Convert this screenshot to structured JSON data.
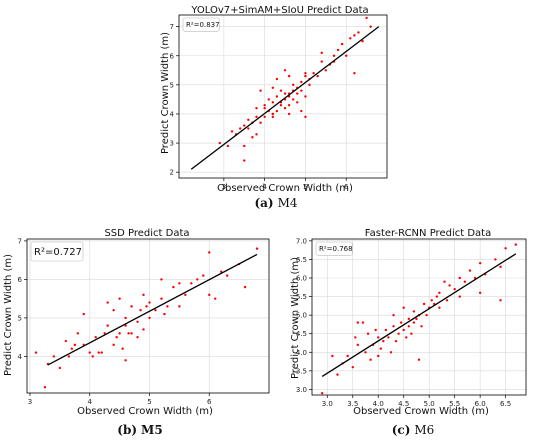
{
  "chart_data": [
    {
      "id": "M4",
      "type": "scatter",
      "title": "YOLOv7+SimAM+SIoU Predict Data",
      "xlabel": "Observed Crown Width   (m)",
      "ylabel": "Predict Crown Width   (m)",
      "r2_label": "R²=0.837",
      "caption_letter": "(a)",
      "caption_name": "M4",
      "xlim": [
        1.9,
        7.0
      ],
      "ylim": [
        1.8,
        7.4
      ],
      "xticks": [
        3,
        4,
        5,
        6
      ],
      "yticks": [
        2,
        3,
        4,
        5,
        6,
        7
      ],
      "grid": true,
      "point_color": "#ff0000",
      "line_color": "#000000",
      "fit_line": {
        "x": [
          2.2,
          6.8
        ],
        "y": [
          2.1,
          7.0
        ]
      },
      "points": {
        "x": [
          2.9,
          3.1,
          3.2,
          3.3,
          3.4,
          3.5,
          3.5,
          3.6,
          3.6,
          3.7,
          3.7,
          3.8,
          3.8,
          3.9,
          3.9,
          4.0,
          4.0,
          4.0,
          4.1,
          4.1,
          4.2,
          4.2,
          4.2,
          4.3,
          4.3,
          4.3,
          4.4,
          4.4,
          4.4,
          4.5,
          4.5,
          4.5,
          4.5,
          4.6,
          4.6,
          4.6,
          4.7,
          4.7,
          4.7,
          4.8,
          4.8,
          4.8,
          4.9,
          4.9,
          5.0,
          5.0,
          5.0,
          5.0,
          5.1,
          5.1,
          5.2,
          5.3,
          5.4,
          5.5,
          5.6,
          5.7,
          5.8,
          5.9,
          6.0,
          6.1,
          6.2,
          6.3,
          6.4,
          6.5,
          6.6,
          3.5,
          3.8,
          4.2,
          4.6,
          4.9,
          4.2,
          4.6,
          5.4,
          5.7,
          6.2
        ],
        "y": [
          3.0,
          2.9,
          3.4,
          3.3,
          3.5,
          2.4,
          3.6,
          3.5,
          3.8,
          3.7,
          3.2,
          3.9,
          4.2,
          3.7,
          4.8,
          4.2,
          4.3,
          3.9,
          4.5,
          4.1,
          4.0,
          4.4,
          4.9,
          4.1,
          4.6,
          5.2,
          4.4,
          4.3,
          4.8,
          4.5,
          4.7,
          4.2,
          5.5,
          4.6,
          4.7,
          4.3,
          4.8,
          4.5,
          5.0,
          4.7,
          4.9,
          4.4,
          4.8,
          5.1,
          4.6,
          5.3,
          5.4,
          3.9,
          5.0,
          5.2,
          5.4,
          5.3,
          5.8,
          5.5,
          5.7,
          6.0,
          6.2,
          6.4,
          6.0,
          6.6,
          6.7,
          6.8,
          6.5,
          7.3,
          7.0,
          2.9,
          3.3,
          4.0,
          4.0,
          4.1,
          3.9,
          5.3,
          6.1,
          5.8,
          5.4
        ]
      }
    },
    {
      "id": "M5",
      "type": "scatter",
      "title": "SSD Predict Data",
      "xlabel": "Observed Crown Width   (m)",
      "ylabel": "Predict Crown Width   (m)",
      "r2_label": "R²=0.727",
      "caption_letter": "(b)",
      "caption_name": "M5",
      "xlim": [
        2.95,
        7.0
      ],
      "ylim": [
        3.05,
        7.05
      ],
      "xticks": [
        3,
        4,
        5,
        6
      ],
      "yticks": [
        4,
        5,
        6,
        7
      ],
      "grid": true,
      "point_color": "#ff0000",
      "line_color": "#000000",
      "fit_line": {
        "x": [
          3.3,
          6.8
        ],
        "y": [
          3.78,
          6.65
        ]
      },
      "points": {
        "x": [
          3.1,
          3.25,
          3.4,
          3.5,
          3.6,
          3.65,
          3.7,
          3.8,
          3.9,
          3.9,
          4.0,
          4.05,
          4.1,
          4.2,
          4.25,
          4.3,
          4.3,
          4.4,
          4.4,
          4.45,
          4.5,
          4.5,
          4.55,
          4.6,
          4.6,
          4.65,
          4.7,
          4.7,
          4.8,
          4.8,
          4.85,
          4.9,
          4.9,
          4.95,
          5.0,
          5.0,
          5.1,
          5.2,
          5.3,
          5.4,
          5.5,
          5.6,
          5.7,
          5.8,
          5.9,
          6.0,
          6.1,
          6.2,
          6.3,
          6.5,
          6.6,
          6.8,
          3.3,
          3.75,
          4.15,
          4.6,
          5.2,
          5.25,
          5.5,
          6.0
        ],
        "y": [
          4.1,
          3.2,
          4.0,
          3.7,
          4.4,
          4.0,
          4.2,
          4.6,
          5.1,
          4.3,
          4.1,
          4.0,
          4.5,
          4.1,
          4.6,
          4.8,
          5.4,
          4.3,
          5.2,
          4.5,
          4.6,
          5.5,
          4.2,
          4.8,
          5.0,
          4.6,
          4.6,
          5.3,
          4.9,
          4.5,
          5.2,
          4.7,
          5.6,
          5.3,
          5.0,
          5.4,
          5.2,
          5.5,
          5.3,
          5.8,
          5.9,
          5.6,
          5.9,
          6.0,
          6.1,
          6.7,
          5.5,
          6.2,
          6.1,
          6.4,
          5.8,
          6.8,
          3.8,
          4.3,
          4.1,
          3.9,
          6.0,
          5.1,
          5.3,
          5.6
        ]
      }
    },
    {
      "id": "M6",
      "type": "scatter",
      "title": "Faster-RCNN Predict Data",
      "xlabel": "Observed Crown Width   (m)",
      "ylabel": "Predict Crown Width   (m)",
      "r2_label": "R²=0.768",
      "caption_letter": "(c)",
      "caption_name": "M6",
      "xlim": [
        2.7,
        6.9
      ],
      "ylim": [
        2.85,
        7.05
      ],
      "xticks": [
        3.0,
        3.5,
        4.0,
        4.5,
        5.0,
        5.5,
        6.0,
        6.5
      ],
      "yticks": [
        3.0,
        3.5,
        4.0,
        4.5,
        5.0,
        5.5,
        6.0,
        6.5,
        7.0
      ],
      "tick_decimals": 1,
      "grid": true,
      "point_color": "#ff0000",
      "line_color": "#000000",
      "fit_line": {
        "x": [
          2.9,
          6.7
        ],
        "y": [
          3.35,
          6.65
        ]
      },
      "points": {
        "x": [
          2.9,
          3.1,
          3.2,
          3.3,
          3.4,
          3.5,
          3.55,
          3.6,
          3.7,
          3.75,
          3.8,
          3.85,
          3.9,
          3.95,
          4.0,
          4.05,
          4.1,
          4.15,
          4.2,
          4.25,
          4.3,
          4.3,
          4.35,
          4.4,
          4.45,
          4.5,
          4.5,
          4.55,
          4.6,
          4.65,
          4.7,
          4.7,
          4.75,
          4.8,
          4.85,
          4.9,
          4.95,
          5.0,
          5.05,
          5.1,
          5.15,
          5.2,
          5.3,
          5.35,
          5.4,
          5.5,
          5.6,
          5.7,
          5.8,
          5.9,
          6.0,
          6.1,
          6.3,
          6.4,
          6.5,
          6.7,
          3.6,
          4.0,
          4.6,
          4.8,
          5.2,
          5.6,
          6.0,
          6.4
        ],
        "y": [
          2.9,
          3.9,
          3.4,
          3.7,
          3.9,
          3.6,
          4.4,
          4.2,
          4.8,
          4.0,
          4.5,
          3.8,
          4.2,
          4.6,
          4.4,
          4.1,
          4.3,
          4.6,
          4.4,
          4.0,
          4.7,
          5.0,
          4.3,
          4.5,
          4.8,
          4.6,
          5.2,
          4.4,
          4.7,
          4.5,
          4.8,
          5.1,
          4.9,
          5.0,
          4.7,
          5.3,
          5.0,
          5.2,
          5.4,
          5.3,
          5.5,
          5.6,
          5.9,
          5.4,
          5.8,
          5.7,
          6.0,
          5.9,
          6.2,
          6.0,
          6.4,
          6.1,
          6.5,
          6.3,
          6.8,
          6.9,
          4.8,
          3.9,
          4.9,
          3.8,
          5.2,
          5.5,
          5.6,
          5.4
        ]
      }
    }
  ]
}
